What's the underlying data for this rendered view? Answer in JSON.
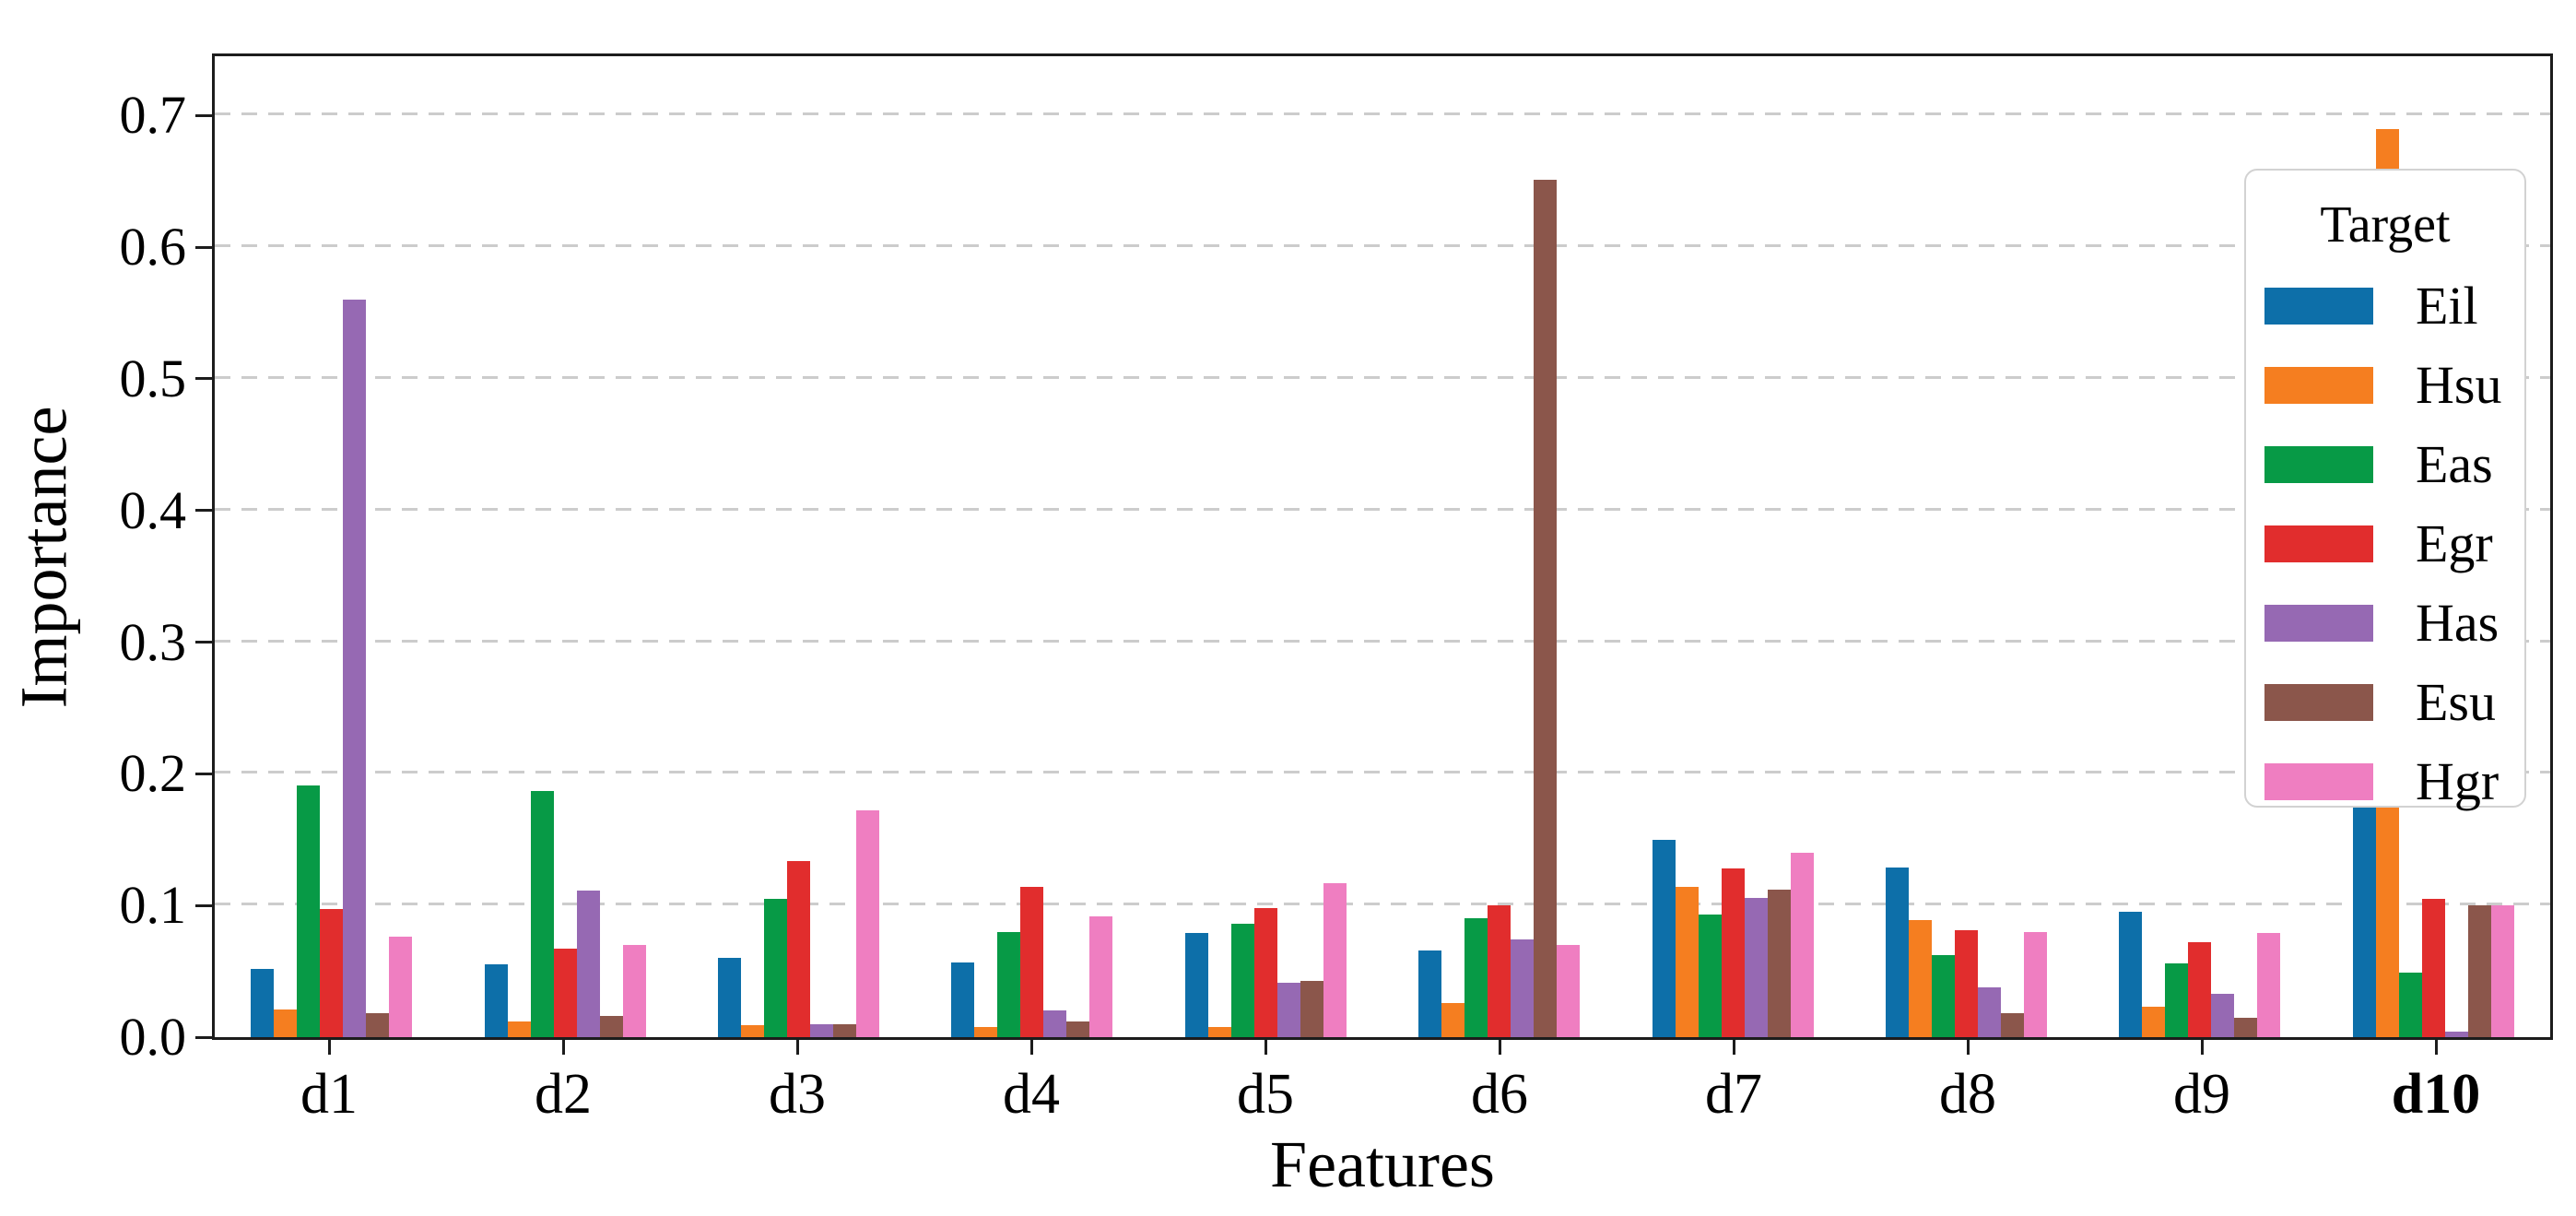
{
  "figure": {
    "xlabel": "Features",
    "ylabel": "Importance",
    "legend_title": "Target"
  },
  "chart_data": {
    "type": "bar",
    "title": "",
    "xlabel": "Features",
    "ylabel": "Importance",
    "legend_title": "Target",
    "legend_position": "upper right",
    "grid": "horizontal dashed",
    "ylim": [
      0,
      0.745
    ],
    "yticks": [
      0.0,
      0.1,
      0.2,
      0.3,
      0.4,
      0.5,
      0.6,
      0.7
    ],
    "ytick_labels": [
      "0.0",
      "0.1",
      "0.2",
      "0.3",
      "0.4",
      "0.5",
      "0.6",
      "0.7"
    ],
    "categories": [
      "d1",
      "d2",
      "d3",
      "d4",
      "d5",
      "d6",
      "d7",
      "d8",
      "d9",
      "d10"
    ],
    "bold_categories": [
      "d10"
    ],
    "series": [
      {
        "name": "Eil",
        "color": "#0d6fa9",
        "values": [
          0.052,
          0.055,
          0.06,
          0.057,
          0.079,
          0.066,
          0.15,
          0.129,
          0.095,
          0.253
        ]
      },
      {
        "name": "Hsu",
        "color": "#f57e20",
        "values": [
          0.021,
          0.012,
          0.009,
          0.008,
          0.008,
          0.026,
          0.114,
          0.089,
          0.023,
          0.69
        ]
      },
      {
        "name": "Eas",
        "color": "#079a46",
        "values": [
          0.191,
          0.187,
          0.105,
          0.08,
          0.086,
          0.09,
          0.093,
          0.062,
          0.056,
          0.049
        ]
      },
      {
        "name": "Egr",
        "color": "#e12d2d",
        "values": [
          0.097,
          0.067,
          0.134,
          0.114,
          0.098,
          0.1,
          0.128,
          0.081,
          0.072,
          0.105
        ]
      },
      {
        "name": "Has",
        "color": "#9669b3",
        "values": [
          0.56,
          0.111,
          0.01,
          0.02,
          0.041,
          0.074,
          0.106,
          0.038,
          0.033,
          0.004
        ]
      },
      {
        "name": "Esu",
        "color": "#8b564b",
        "values": [
          0.018,
          0.016,
          0.01,
          0.012,
          0.043,
          0.651,
          0.112,
          0.018,
          0.015,
          0.1
        ]
      },
      {
        "name": "Hgr",
        "color": "#ef7ec1",
        "values": [
          0.076,
          0.07,
          0.172,
          0.092,
          0.117,
          0.07,
          0.14,
          0.08,
          0.079,
          0.1
        ]
      }
    ],
    "colors": {
      "axis": "#1c1c1c",
      "gridline": "#cccccc",
      "background": "#ffffff"
    }
  }
}
